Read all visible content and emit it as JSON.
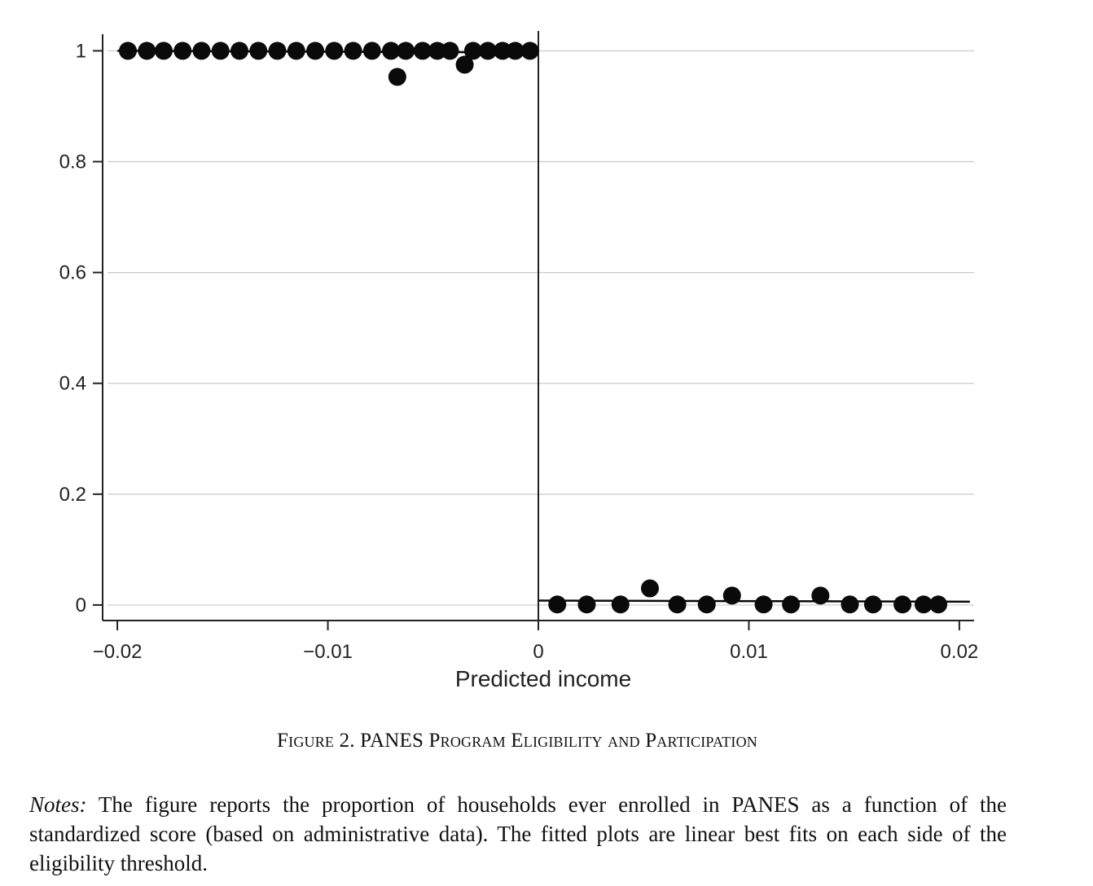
{
  "chart_data": {
    "type": "scatter",
    "title": "",
    "xlabel": "Predicted income",
    "ylabel": "",
    "xlim": [
      -0.0207,
      0.0207
    ],
    "ylim": [
      -0.028,
      1.03
    ],
    "x_ticks": [
      -0.02,
      -0.01,
      0,
      0.01,
      0.02
    ],
    "x_tick_labels": [
      "−0.02",
      "−0.01",
      "0",
      "0.01",
      "0.02"
    ],
    "y_ticks": [
      0,
      0.2,
      0.4,
      0.6,
      0.8,
      1
    ],
    "y_tick_labels": [
      "0",
      "0.2",
      "0.4",
      "0.6",
      "0.8",
      "1"
    ],
    "grid": "horizontal",
    "threshold": 0,
    "series": [
      {
        "side": "below-threshold",
        "x": [
          -0.0195,
          -0.0186,
          -0.0178,
          -0.0169,
          -0.016,
          -0.0151,
          -0.0142,
          -0.0133,
          -0.0124,
          -0.0115,
          -0.0106,
          -0.0097,
          -0.0088,
          -0.0079,
          -0.007,
          -0.0067,
          -0.0063,
          -0.0055,
          -0.0048,
          -0.0042,
          -0.0035,
          -0.0031,
          -0.0024,
          -0.0017,
          -0.0011,
          -0.0004
        ],
        "y": [
          1,
          1,
          1,
          1,
          1,
          1,
          1,
          1,
          1,
          1,
          1,
          1,
          1,
          1,
          1,
          0.953,
          1,
          1,
          1,
          1,
          0.975,
          1,
          1,
          1,
          1,
          1
        ]
      },
      {
        "side": "above-threshold",
        "x": [
          0.0009,
          0.0023,
          0.0039,
          0.0053,
          0.0066,
          0.008,
          0.0092,
          0.0107,
          0.012,
          0.0134,
          0.0148,
          0.0159,
          0.0173,
          0.0183,
          0.019
        ],
        "y": [
          0.001,
          0.001,
          0.001,
          0.03,
          0.001,
          0.001,
          0.017,
          0.001,
          0.001,
          0.017,
          0.001,
          0.001,
          0.001,
          0.001,
          0.001
        ]
      }
    ],
    "fit_lines": [
      {
        "x": [
          -0.02,
          0
        ],
        "y": [
          1,
          0.997
        ]
      },
      {
        "x": [
          0,
          0.0205
        ],
        "y": [
          0.008,
          0.006
        ]
      }
    ],
    "colors": {
      "points": "#0a0a0a",
      "fit": "#0a0a0a",
      "grid": "#c9c9c9",
      "axis": "#222222"
    }
  },
  "figure": {
    "caption": "Figure 2. PANES Program Eligibility and Participation",
    "notes_lead": "Notes:",
    "notes_text": " The figure reports the proportion of households ever enrolled in PANES as a function of the standardized score (based on administrative data). The fitted plots are linear best fits on each side of the eligibility threshold."
  }
}
